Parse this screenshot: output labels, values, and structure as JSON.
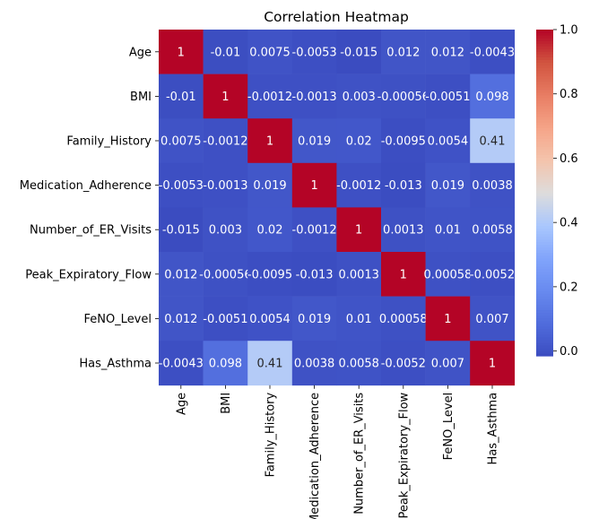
{
  "chart_data": {
    "type": "heatmap",
    "title": "Correlation Heatmap",
    "xlabel": "",
    "ylabel": "",
    "x_categories": [
      "Age",
      "BMI",
      "Family_History",
      "Medication_Adherence",
      "Number_of_ER_Visits",
      "Peak_Expiratory_Flow",
      "FeNO_Level",
      "Has_Asthma"
    ],
    "y_categories": [
      "Age",
      "BMI",
      "Family_History",
      "Medication_Adherence",
      "Number_of_ER_Visits",
      "Peak_Expiratory_Flow",
      "FeNO_Level",
      "Has_Asthma"
    ],
    "values": [
      [
        1,
        -0.01,
        0.0075,
        -0.0053,
        -0.015,
        0.012,
        0.012,
        -0.0043
      ],
      [
        -0.01,
        1,
        -0.0012,
        -0.0013,
        0.003,
        -0.00056,
        -0.0051,
        0.098
      ],
      [
        0.0075,
        -0.0012,
        1,
        0.019,
        0.02,
        -0.0095,
        0.0054,
        0.41
      ],
      [
        -0.0053,
        -0.0013,
        0.019,
        1,
        -0.0012,
        -0.013,
        0.019,
        0.0038
      ],
      [
        -0.015,
        0.003,
        0.02,
        -0.0012,
        1,
        0.0013,
        0.01,
        0.0058
      ],
      [
        0.012,
        -0.00056,
        -0.0095,
        -0.013,
        0.0013,
        1,
        0.00058,
        -0.0052
      ],
      [
        0.012,
        -0.0051,
        0.0054,
        0.019,
        0.01,
        0.00058,
        1,
        0.007
      ],
      [
        -0.0043,
        0.098,
        0.41,
        0.0038,
        0.0058,
        -0.0052,
        0.007,
        1
      ]
    ],
    "annotations": [
      [
        "1",
        "-0.01",
        "0.0075",
        "-0.0053",
        "-0.015",
        "0.012",
        "0.012",
        "-0.0043"
      ],
      [
        "-0.01",
        "1",
        "-0.0012",
        "-0.0013",
        "0.003",
        "-0.00056",
        "-0.0051",
        "0.098"
      ],
      [
        "0.0075",
        "-0.0012",
        "1",
        "0.019",
        "0.02",
        "-0.0095",
        "0.0054",
        "0.41"
      ],
      [
        "-0.0053",
        "-0.0013",
        "0.019",
        "1",
        "-0.0012",
        "-0.013",
        "0.019",
        "0.0038"
      ],
      [
        "-0.015",
        "0.003",
        "0.02",
        "-0.0012",
        "1",
        "0.0013",
        "0.01",
        "0.0058"
      ],
      [
        "0.012",
        "-0.00056",
        "-0.0095",
        "-0.013",
        "0.0013",
        "1",
        "0.00058",
        "-0.0052"
      ],
      [
        "0.012",
        "-0.0051",
        "0.0054",
        "0.019",
        "0.01",
        "0.00058",
        "1",
        "0.007"
      ],
      [
        "-0.0043",
        "0.098",
        "0.41",
        "0.0038",
        "0.0058",
        "-0.0052",
        "0.007",
        "1"
      ]
    ],
    "colormap": "coolwarm",
    "color_range": [
      -0.015,
      1
    ],
    "colorbar_ticks": [
      0.0,
      0.2,
      0.4,
      0.6,
      0.8,
      1.0
    ],
    "colorbar_tick_labels": [
      "0.0",
      "0.2",
      "0.4",
      "0.6",
      "0.8",
      "1.0"
    ],
    "grid": false
  }
}
